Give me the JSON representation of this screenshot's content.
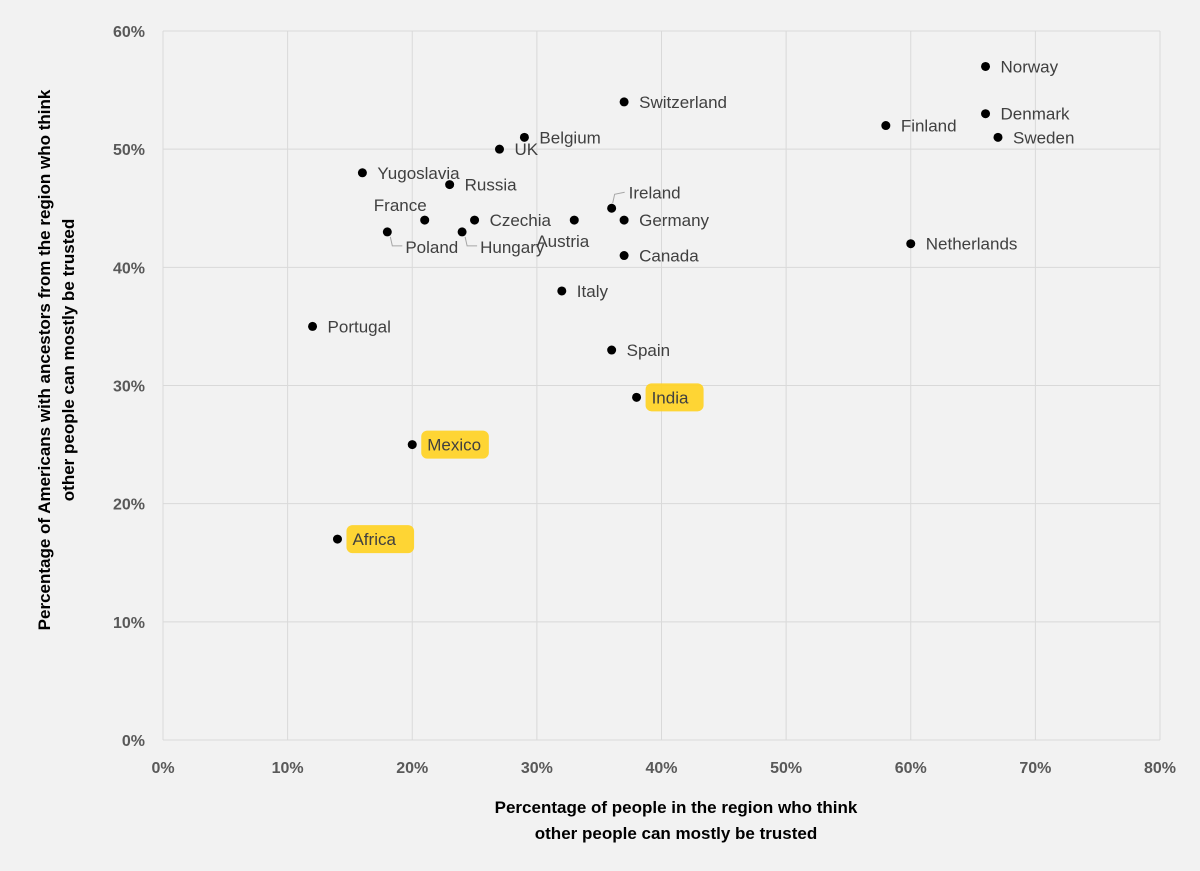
{
  "chart_data": {
    "type": "scatter",
    "title": "",
    "xlabel": [
      "Percentage of people in the region who think",
      "other people can mostly be trusted"
    ],
    "ylabel": [
      "Percentage of Americans with ancestors from the region who think",
      "other people can mostly be trusted"
    ],
    "xlim": [
      0,
      80
    ],
    "ylim": [
      0,
      60
    ],
    "x_ticks": [
      "0%",
      "10%",
      "20%",
      "30%",
      "40%",
      "50%",
      "60%",
      "70%",
      "80%"
    ],
    "y_ticks": [
      "0%",
      "10%",
      "20%",
      "30%",
      "40%",
      "50%",
      "60%"
    ],
    "grid": true,
    "highlight_color": "#ffd21f",
    "points": [
      {
        "label": "Norway",
        "x": 66,
        "y": 57,
        "pos": "right"
      },
      {
        "label": "Denmark",
        "x": 66,
        "y": 53,
        "pos": "right"
      },
      {
        "label": "Sweden",
        "x": 67,
        "y": 51,
        "pos": "right"
      },
      {
        "label": "Finland",
        "x": 58,
        "y": 52,
        "pos": "right"
      },
      {
        "label": "Netherlands",
        "x": 60,
        "y": 42,
        "pos": "right"
      },
      {
        "label": "Switzerland",
        "x": 37,
        "y": 54,
        "pos": "right"
      },
      {
        "label": "Belgium",
        "x": 29,
        "y": 51,
        "pos": "right"
      },
      {
        "label": "UK",
        "x": 27,
        "y": 50,
        "pos": "right"
      },
      {
        "label": "Yugoslavia",
        "x": 16,
        "y": 48,
        "pos": "right"
      },
      {
        "label": "Russia",
        "x": 23,
        "y": 47,
        "pos": "right"
      },
      {
        "label": "France",
        "x": 21,
        "y": 44,
        "pos": "above-left"
      },
      {
        "label": "Czechia",
        "x": 25,
        "y": 44,
        "pos": "right"
      },
      {
        "label": "Poland",
        "x": 18,
        "y": 43,
        "pos": "leader-below"
      },
      {
        "label": "Hungary",
        "x": 24,
        "y": 43,
        "pos": "leader-below"
      },
      {
        "label": "Austria",
        "x": 33,
        "y": 44,
        "pos": "below"
      },
      {
        "label": "Ireland",
        "x": 36,
        "y": 45,
        "pos": "leader-above"
      },
      {
        "label": "Germany",
        "x": 37,
        "y": 44,
        "pos": "right"
      },
      {
        "label": "Canada",
        "x": 37,
        "y": 41,
        "pos": "right"
      },
      {
        "label": "Italy",
        "x": 32,
        "y": 38,
        "pos": "right"
      },
      {
        "label": "Portugal",
        "x": 12,
        "y": 35,
        "pos": "right"
      },
      {
        "label": "Spain",
        "x": 36,
        "y": 33,
        "pos": "right"
      },
      {
        "label": "India",
        "x": 38,
        "y": 29,
        "pos": "right",
        "highlight": true
      },
      {
        "label": "Mexico",
        "x": 20,
        "y": 25,
        "pos": "right",
        "highlight": true
      },
      {
        "label": "Africa",
        "x": 14,
        "y": 17,
        "pos": "right",
        "highlight": true
      }
    ]
  }
}
